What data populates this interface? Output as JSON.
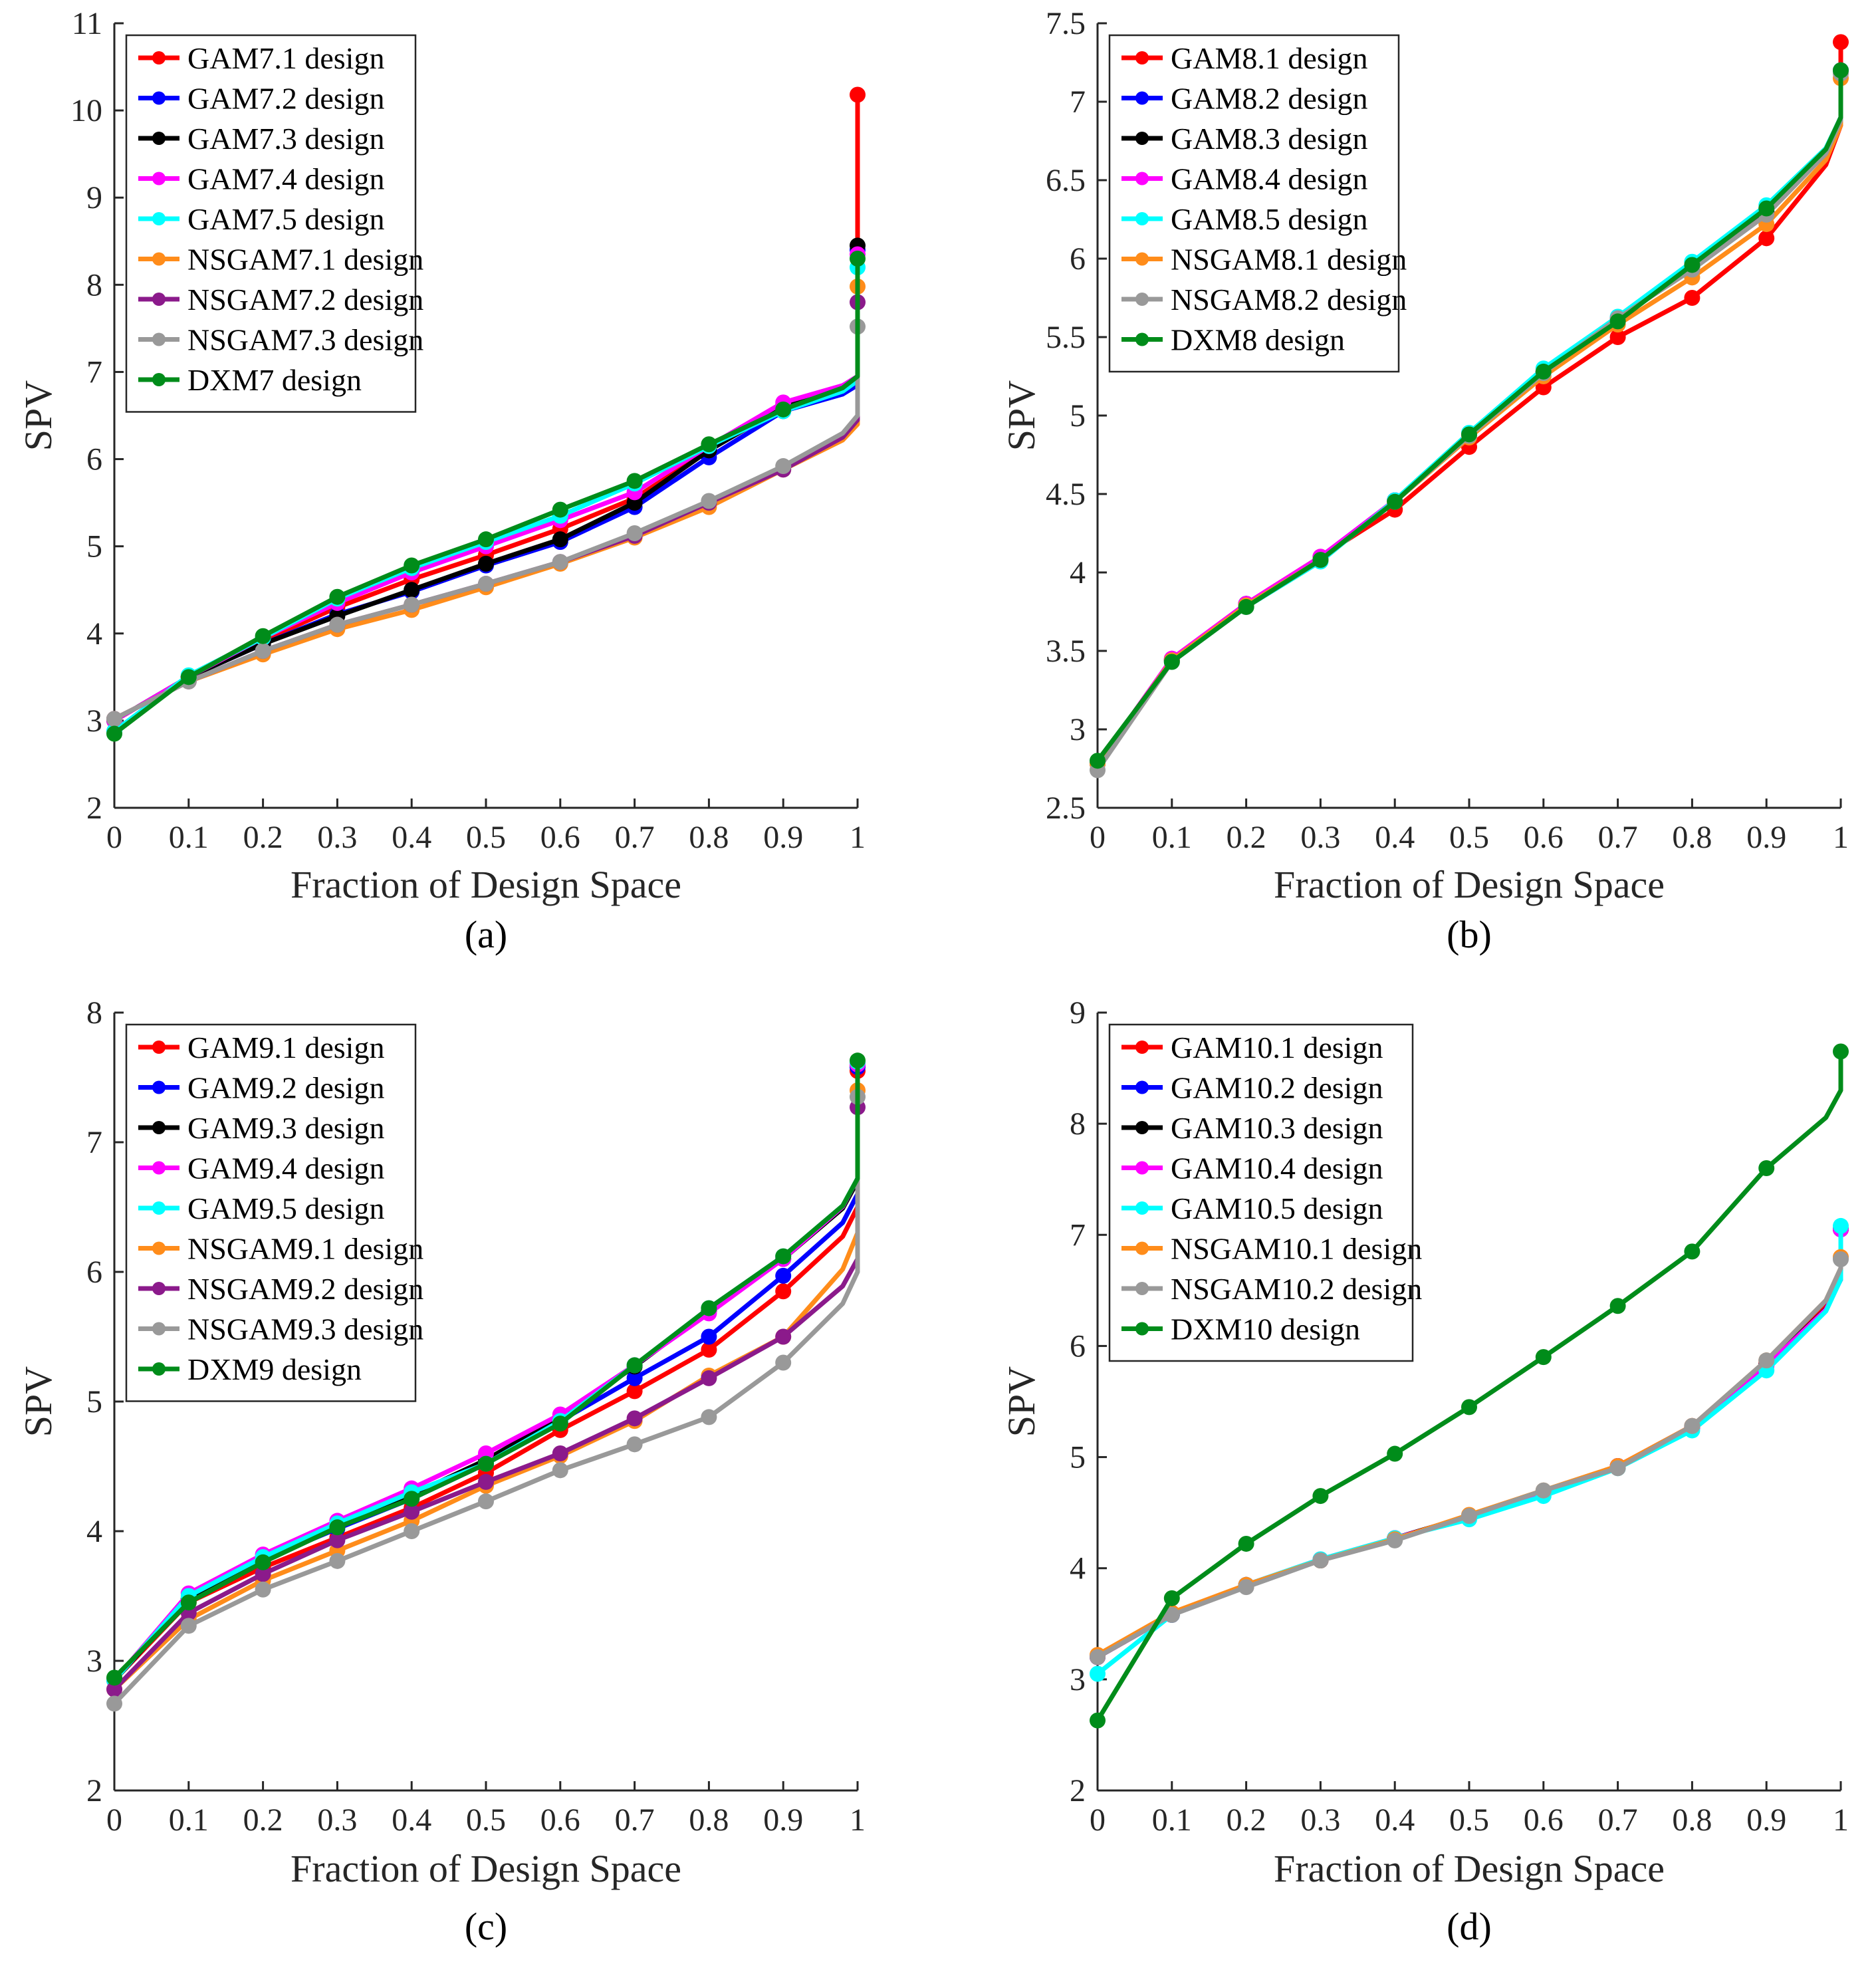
{
  "chart_data": [
    {
      "type": "line",
      "caption": "(a)",
      "xlabel": "Fraction of Design Space",
      "ylabel": "SPV",
      "xlim": [
        0,
        1
      ],
      "ylim": [
        2,
        11
      ],
      "xticks": [
        0,
        0.1,
        0.2,
        0.3,
        0.4,
        0.5,
        0.6,
        0.7,
        0.8,
        0.9,
        1
      ],
      "xtick_labels": [
        "0",
        "0.1",
        "0.2",
        "0.3",
        "0.4",
        "0.5",
        "0.6",
        "0.7",
        "0.8",
        "0.9",
        "1"
      ],
      "yticks": [
        2,
        3,
        4,
        5,
        6,
        7,
        8,
        9,
        10,
        11
      ],
      "ytick_labels": [
        "2",
        "3",
        "4",
        "5",
        "6",
        "7",
        "8",
        "9",
        "10",
        "11"
      ],
      "legend_position": "top-left",
      "grid": false,
      "x": [
        0,
        0.1,
        0.2,
        0.3,
        0.4,
        0.5,
        0.6,
        0.7,
        0.8,
        0.9,
        1
      ],
      "series": [
        {
          "name": "GAM7.1 design",
          "color": "#ff0000",
          "values": [
            3.0,
            3.5,
            3.92,
            4.3,
            4.62,
            4.9,
            5.2,
            5.55,
            6.1,
            6.62,
            10.18
          ],
          "end_jump": 6.95
        },
        {
          "name": "GAM7.2 design",
          "color": "#0000ff",
          "values": [
            3.0,
            3.5,
            3.88,
            4.22,
            4.48,
            4.78,
            5.05,
            5.45,
            6.02,
            6.55,
            8.4
          ],
          "end_jump": 6.85
        },
        {
          "name": "GAM7.3 design",
          "color": "#000000",
          "values": [
            3.0,
            3.5,
            3.88,
            4.2,
            4.5,
            4.8,
            5.08,
            5.5,
            6.1,
            6.6,
            8.45
          ],
          "end_jump": 6.9
        },
        {
          "name": "GAM7.4 design",
          "color": "#ff00ff",
          "values": [
            3.0,
            3.5,
            3.95,
            4.35,
            4.7,
            5.0,
            5.3,
            5.62,
            6.15,
            6.65,
            8.35
          ],
          "end_jump": 6.95
        },
        {
          "name": "GAM7.5 design",
          "color": "#00ffff",
          "values": [
            2.88,
            3.52,
            3.95,
            4.4,
            4.75,
            5.05,
            5.35,
            5.72,
            6.15,
            6.55,
            8.2
          ],
          "end_jump": 6.9
        },
        {
          "name": "NSGAM7.1 design",
          "color": "#ff8c1a",
          "values": [
            3.02,
            3.45,
            3.76,
            4.05,
            4.27,
            4.53,
            4.8,
            5.1,
            5.45,
            5.88,
            7.98
          ],
          "end_jump": 6.4
        },
        {
          "name": "NSGAM7.2 design",
          "color": "#8b1a8b",
          "values": [
            3.02,
            3.45,
            3.8,
            4.1,
            4.33,
            4.57,
            4.82,
            5.12,
            5.5,
            5.88,
            7.8
          ],
          "end_jump": 6.45
        },
        {
          "name": "NSGAM7.3 design",
          "color": "#999999",
          "values": [
            3.02,
            3.45,
            3.8,
            4.1,
            4.33,
            4.57,
            4.82,
            5.15,
            5.52,
            5.92,
            7.52
          ],
          "end_jump": 6.5
        },
        {
          "name": "DXM7 design",
          "color": "#008c1a",
          "values": [
            2.85,
            3.5,
            3.97,
            4.42,
            4.78,
            5.08,
            5.42,
            5.75,
            6.17,
            6.57,
            8.3
          ],
          "end_jump": 6.95
        }
      ]
    },
    {
      "type": "line",
      "caption": "(b)",
      "xlabel": "Fraction of Design Space",
      "ylabel": "SPV",
      "xlim": [
        0,
        1
      ],
      "ylim": [
        2.5,
        7.5
      ],
      "xticks": [
        0,
        0.1,
        0.2,
        0.3,
        0.4,
        0.5,
        0.6,
        0.7,
        0.8,
        0.9,
        1
      ],
      "xtick_labels": [
        "0",
        "0.1",
        "0.2",
        "0.3",
        "0.4",
        "0.5",
        "0.6",
        "0.7",
        "0.8",
        "0.9",
        "1"
      ],
      "yticks": [
        2.5,
        3,
        3.5,
        4,
        4.5,
        5,
        5.5,
        6,
        6.5,
        7,
        7.5
      ],
      "ytick_labels": [
        "2.5",
        "3",
        "3.5",
        "4",
        "4.5",
        "5",
        "5.5",
        "6",
        "6.5",
        "7",
        "7.5"
      ],
      "legend_position": "top-left",
      "grid": false,
      "x": [
        0,
        0.1,
        0.2,
        0.3,
        0.4,
        0.5,
        0.6,
        0.7,
        0.8,
        0.9,
        1
      ],
      "series": [
        {
          "name": "GAM8.1 design",
          "color": "#ff0000",
          "values": [
            2.78,
            3.45,
            3.8,
            4.1,
            4.4,
            4.8,
            5.18,
            5.5,
            5.75,
            6.13,
            7.38
          ],
          "end_jump": 6.85
        },
        {
          "name": "GAM8.2 design",
          "color": "#0000ff",
          "values": [
            2.78,
            3.44,
            3.8,
            4.08,
            4.46,
            4.88,
            5.28,
            5.62,
            5.95,
            6.3,
            7.2
          ],
          "end_jump": 6.9
        },
        {
          "name": "GAM8.3 design",
          "color": "#000000",
          "values": [
            2.78,
            3.44,
            3.8,
            4.08,
            4.46,
            4.88,
            5.28,
            5.62,
            5.95,
            6.3,
            7.2
          ],
          "end_jump": 6.9
        },
        {
          "name": "GAM8.4 design",
          "color": "#ff00ff",
          "values": [
            2.78,
            3.45,
            3.8,
            4.1,
            4.46,
            4.88,
            5.28,
            5.62,
            5.96,
            6.32,
            7.2
          ],
          "end_jump": 6.9
        },
        {
          "name": "GAM8.5 design",
          "color": "#00ffff",
          "values": [
            2.78,
            3.43,
            3.78,
            4.07,
            4.46,
            4.89,
            5.3,
            5.63,
            5.98,
            6.34,
            7.2
          ],
          "end_jump": 6.9
        },
        {
          "name": "NSGAM8.1 design",
          "color": "#ff8c1a",
          "values": [
            2.78,
            3.44,
            3.79,
            4.08,
            4.45,
            4.86,
            5.25,
            5.58,
            5.88,
            6.22,
            7.15
          ],
          "end_jump": 6.85
        },
        {
          "name": "NSGAM8.2 design",
          "color": "#999999",
          "values": [
            2.74,
            3.43,
            3.78,
            4.08,
            4.45,
            4.87,
            5.27,
            5.62,
            5.93,
            6.28,
            7.18
          ],
          "end_jump": 6.88
        },
        {
          "name": "DXM8 design",
          "color": "#008c1a",
          "values": [
            2.8,
            3.43,
            3.78,
            4.08,
            4.45,
            4.88,
            5.28,
            5.6,
            5.96,
            6.32,
            7.2
          ],
          "end_jump": 6.9
        }
      ]
    },
    {
      "type": "line",
      "caption": "(c)",
      "xlabel": "Fraction of Design Space",
      "ylabel": "SPV",
      "xlim": [
        0,
        1
      ],
      "ylim": [
        2,
        8
      ],
      "xticks": [
        0,
        0.1,
        0.2,
        0.3,
        0.4,
        0.5,
        0.6,
        0.7,
        0.8,
        0.9,
        1
      ],
      "xtick_labels": [
        "0",
        "0.1",
        "0.2",
        "0.3",
        "0.4",
        "0.5",
        "0.6",
        "0.7",
        "0.8",
        "0.9",
        "1"
      ],
      "yticks": [
        2,
        3,
        4,
        5,
        6,
        7,
        8
      ],
      "ytick_labels": [
        "2",
        "3",
        "4",
        "5",
        "6",
        "7",
        "8"
      ],
      "legend_position": "top-left",
      "grid": false,
      "x": [
        0,
        0.1,
        0.2,
        0.3,
        0.4,
        0.5,
        0.6,
        0.7,
        0.8,
        0.9,
        1
      ],
      "series": [
        {
          "name": "GAM9.1 design",
          "color": "#ff0000",
          "values": [
            2.85,
            3.45,
            3.72,
            3.95,
            4.18,
            4.45,
            4.78,
            5.08,
            5.4,
            5.85,
            7.55
          ],
          "end_jump": 6.5
        },
        {
          "name": "GAM9.2 design",
          "color": "#0000ff",
          "values": [
            2.85,
            3.48,
            3.78,
            4.02,
            4.25,
            4.52,
            4.85,
            5.18,
            5.5,
            5.97,
            7.58
          ],
          "end_jump": 6.6
        },
        {
          "name": "GAM9.3 design",
          "color": "#000000",
          "values": [
            2.85,
            3.48,
            3.8,
            4.05,
            4.28,
            4.55,
            4.88,
            5.27,
            5.7,
            6.1,
            7.6
          ],
          "end_jump": 6.7
        },
        {
          "name": "GAM9.4 design",
          "color": "#ff00ff",
          "values": [
            2.85,
            3.52,
            3.82,
            4.08,
            4.33,
            4.6,
            4.9,
            5.28,
            5.68,
            6.1,
            7.6
          ],
          "end_jump": 6.72
        },
        {
          "name": "GAM9.5 design",
          "color": "#00ffff",
          "values": [
            2.85,
            3.5,
            3.8,
            4.06,
            4.3,
            4.52,
            4.85,
            5.28,
            5.72,
            6.12,
            7.62
          ],
          "end_jump": 6.72
        },
        {
          "name": "NSGAM9.1 design",
          "color": "#ff8c1a",
          "values": [
            2.78,
            3.32,
            3.62,
            3.85,
            4.08,
            4.35,
            4.58,
            4.85,
            5.2,
            5.5,
            7.4
          ],
          "end_jump": 6.3
        },
        {
          "name": "NSGAM9.2 design",
          "color": "#8b1a8b",
          "values": [
            2.78,
            3.37,
            3.67,
            3.93,
            4.15,
            4.38,
            4.6,
            4.87,
            5.18,
            5.5,
            7.27
          ],
          "end_jump": 6.1
        },
        {
          "name": "NSGAM9.3 design",
          "color": "#999999",
          "values": [
            2.67,
            3.27,
            3.55,
            3.77,
            4.0,
            4.23,
            4.47,
            4.67,
            4.88,
            5.3,
            7.35
          ],
          "end_jump": 6.0
        },
        {
          "name": "DXM9 design",
          "color": "#008c1a",
          "values": [
            2.87,
            3.45,
            3.76,
            4.03,
            4.25,
            4.52,
            4.83,
            5.28,
            5.72,
            6.12,
            7.63
          ],
          "end_jump": 6.72
        }
      ]
    },
    {
      "type": "line",
      "caption": "(d)",
      "xlabel": "Fraction of Design Space",
      "ylabel": "SPV",
      "xlim": [
        0,
        1
      ],
      "ylim": [
        2,
        9
      ],
      "xticks": [
        0,
        0.1,
        0.2,
        0.3,
        0.4,
        0.5,
        0.6,
        0.7,
        0.8,
        0.9,
        1
      ],
      "xtick_labels": [
        "0",
        "0.1",
        "0.2",
        "0.3",
        "0.4",
        "0.5",
        "0.6",
        "0.7",
        "0.8",
        "0.9",
        "1"
      ],
      "yticks": [
        2,
        3,
        4,
        5,
        6,
        7,
        8,
        9
      ],
      "ytick_labels": [
        "2",
        "3",
        "4",
        "5",
        "6",
        "7",
        "8",
        "9"
      ],
      "legend_position": "top-left",
      "grid": false,
      "x": [
        0,
        0.1,
        0.2,
        0.3,
        0.4,
        0.5,
        0.6,
        0.7,
        0.8,
        0.9,
        1
      ],
      "series": [
        {
          "name": "GAM10.1 design",
          "color": "#ff0000",
          "values": [
            3.2,
            3.58,
            3.85,
            4.07,
            4.27,
            4.47,
            4.67,
            4.92,
            5.28,
            5.85,
            7.05
          ],
          "end_jump": 6.65
        },
        {
          "name": "GAM10.2 design",
          "color": "#0000ff",
          "values": [
            3.2,
            3.58,
            3.85,
            4.07,
            4.27,
            4.47,
            4.67,
            4.92,
            5.27,
            5.83,
            7.05
          ],
          "end_jump": 6.6
        },
        {
          "name": "GAM10.3 design",
          "color": "#000000",
          "values": [
            3.2,
            3.58,
            3.85,
            4.07,
            4.27,
            4.47,
            4.67,
            4.92,
            5.27,
            5.83,
            7.05
          ],
          "end_jump": 6.6
        },
        {
          "name": "GAM10.4 design",
          "color": "#ff00ff",
          "values": [
            3.2,
            3.58,
            3.85,
            4.08,
            4.27,
            4.46,
            4.67,
            4.92,
            5.26,
            5.82,
            7.05
          ],
          "end_jump": 6.6
        },
        {
          "name": "GAM10.5 design",
          "color": "#00ffff",
          "values": [
            3.05,
            3.58,
            3.85,
            4.08,
            4.27,
            4.44,
            4.65,
            4.9,
            5.24,
            5.78,
            7.08
          ],
          "end_jump": 6.6
        },
        {
          "name": "NSGAM10.1 design",
          "color": "#ff8c1a",
          "values": [
            3.22,
            3.6,
            3.85,
            4.07,
            4.26,
            4.48,
            4.7,
            4.92,
            5.28,
            5.87,
            6.8
          ],
          "end_jump": 6.7
        },
        {
          "name": "NSGAM10.2 design",
          "color": "#999999",
          "values": [
            3.2,
            3.58,
            3.83,
            4.07,
            4.25,
            4.47,
            4.7,
            4.9,
            5.28,
            5.87,
            6.78
          ],
          "end_jump": 6.7
        },
        {
          "name": "DXM10 design",
          "color": "#008c1a",
          "values": [
            2.63,
            3.73,
            4.22,
            4.65,
            5.03,
            5.45,
            5.9,
            6.36,
            6.85,
            7.6,
            8.65
          ],
          "end_jump": 8.3
        }
      ]
    }
  ]
}
